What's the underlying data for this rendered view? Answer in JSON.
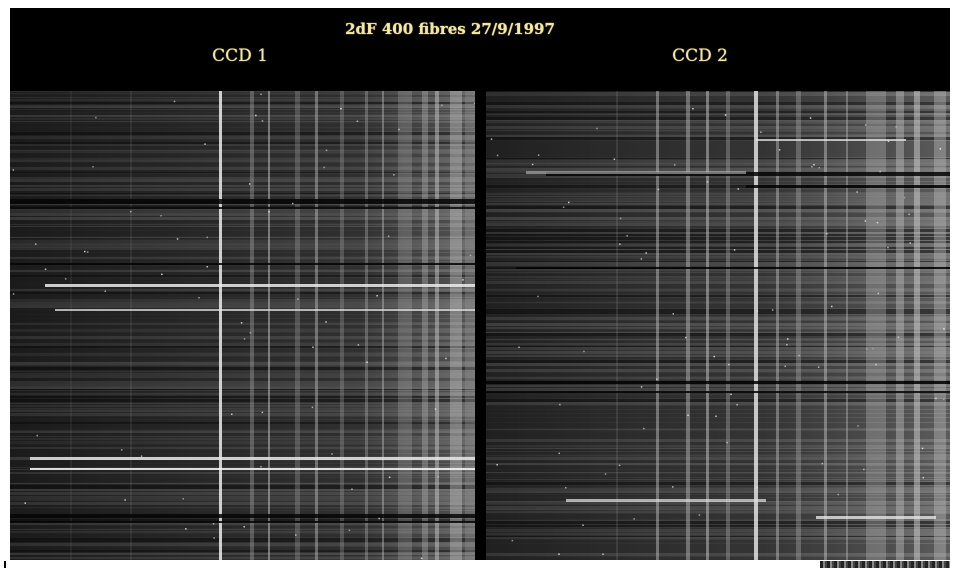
{
  "figure": {
    "title": "2dF 400 fibres 27/9/1997",
    "panels": [
      {
        "label": "CCD 1"
      },
      {
        "label": "CCD 2"
      }
    ],
    "colors": {
      "background": "#000000",
      "text": "#f4e7a0",
      "frame": "#ffffff"
    }
  }
}
